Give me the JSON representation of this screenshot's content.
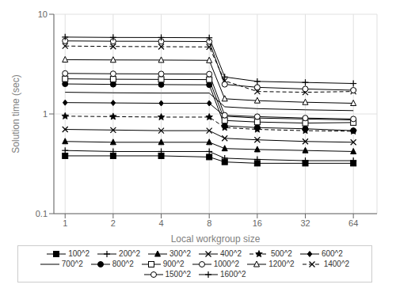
{
  "chart_data": {
    "type": "line",
    "xlabel": "Local workgroup size",
    "ylabel": "Solution time (sec)",
    "log": true,
    "grid": true,
    "legend": "bottom",
    "color": "#000000",
    "x": [
      1,
      2,
      4,
      8,
      10,
      16,
      32,
      64
    ],
    "series": [
      {
        "name": "100^2",
        "values": [
          0.38,
          0.38,
          0.38,
          0.37,
          0.33,
          0.32,
          0.32,
          0.32
        ],
        "marker": "square",
        "line_style": "solid"
      },
      {
        "name": "200^2",
        "values": [
          0.43,
          0.42,
          0.42,
          0.42,
          0.36,
          0.35,
          0.34,
          0.34
        ],
        "marker": "plus",
        "line_style": "solid"
      },
      {
        "name": "300^2",
        "values": [
          0.53,
          0.52,
          0.52,
          0.52,
          0.45,
          0.44,
          0.43,
          0.42
        ],
        "marker": "triangle",
        "line_style": "solid"
      },
      {
        "name": "400^2",
        "values": [
          0.7,
          0.69,
          0.68,
          0.68,
          0.57,
          0.55,
          0.53,
          0.52
        ],
        "marker": "x",
        "line_style": "solid"
      },
      {
        "name": "500^2",
        "values": [
          0.95,
          0.94,
          0.93,
          0.93,
          0.73,
          0.7,
          0.68,
          0.67
        ],
        "marker": "star",
        "line_style": "dashed"
      },
      {
        "name": "600^2",
        "values": [
          1.3,
          1.29,
          1.28,
          1.28,
          0.95,
          0.91,
          0.89,
          0.87
        ],
        "marker": "diamond",
        "line_style": "solid"
      },
      {
        "name": "700^2",
        "values": [
          1.65,
          1.63,
          1.62,
          1.62,
          1.18,
          1.13,
          1.1,
          1.08
        ],
        "marker": "none",
        "line_style": "solid"
      },
      {
        "name": "800^2",
        "values": [
          2.0,
          1.98,
          1.97,
          1.96,
          0.76,
          0.73,
          0.71,
          0.68
        ],
        "marker": "circle",
        "line_style": "solid"
      },
      {
        "name": "900^2",
        "values": [
          2.25,
          2.23,
          2.22,
          2.21,
          0.86,
          0.83,
          0.81,
          0.82
        ],
        "marker": "open_square",
        "line_style": "solid"
      },
      {
        "name": "1000^2",
        "values": [
          2.55,
          2.53,
          2.52,
          2.51,
          0.97,
          0.94,
          0.91,
          0.89
        ],
        "marker": "open_circle",
        "line_style": "solid"
      },
      {
        "name": "1200^2",
        "values": [
          3.5,
          3.48,
          3.47,
          3.45,
          1.42,
          1.36,
          1.31,
          1.28
        ],
        "marker": "open_triangle",
        "line_style": "solid"
      },
      {
        "name": "1400^2",
        "values": [
          4.8,
          4.75,
          4.73,
          4.7,
          2.15,
          1.68,
          1.65,
          1.68
        ],
        "marker": "x",
        "line_style": "dashed"
      },
      {
        "name": "1500^2",
        "values": [
          5.4,
          5.36,
          5.35,
          5.32,
          1.98,
          1.85,
          1.78,
          1.73
        ],
        "marker": "open_circle",
        "line_style": "solid"
      },
      {
        "name": "1600^2",
        "values": [
          5.9,
          5.85,
          5.84,
          5.81,
          2.35,
          2.12,
          2.07,
          2.02
        ],
        "marker": "plus",
        "line_style": "solid"
      }
    ],
    "xlim": [
      0.85,
      90
    ],
    "xticks": [
      1,
      2,
      4,
      8,
      16,
      32,
      64
    ],
    "ylim": [
      0.1,
      10
    ],
    "yticks": [
      0.1,
      1,
      10
    ]
  }
}
